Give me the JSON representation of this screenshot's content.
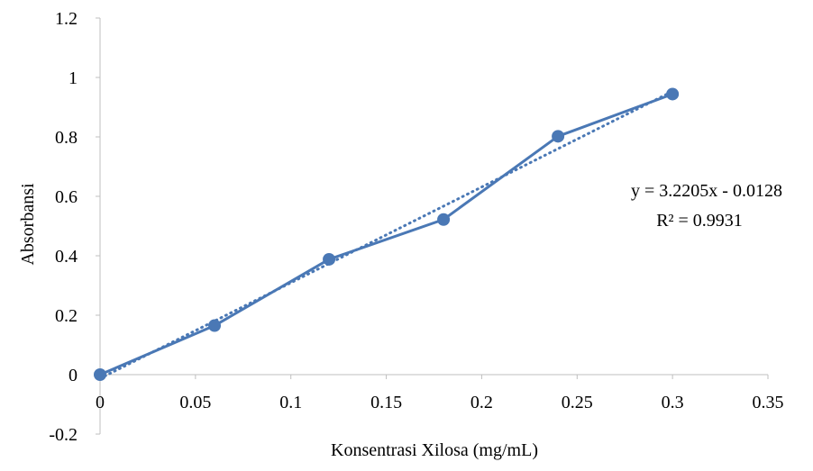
{
  "chart_data": {
    "type": "line",
    "xlabel": "Konsentrasi Xilosa (mg/mL)",
    "ylabel": "Absorbansi",
    "xlim": [
      0,
      0.35
    ],
    "ylim": [
      -0.2,
      1.2
    ],
    "x_ticks": [
      "0",
      "0.05",
      "0.1",
      "0.15",
      "0.2",
      "0.25",
      "0.3",
      "0.35"
    ],
    "y_ticks": [
      "-0.2",
      "0",
      "0.2",
      "0.4",
      "0.6",
      "0.8",
      "1",
      "1.2"
    ],
    "grid": false,
    "series": [
      {
        "x": [
          0,
          0.06,
          0.12,
          0.18,
          0.24,
          0.3
        ],
        "y": [
          0,
          0.165,
          0.388,
          0.522,
          0.802,
          0.944
        ],
        "color": "#4a78b5"
      }
    ],
    "trendline": {
      "style": "dotted",
      "slope": 3.2205,
      "intercept": -0.0128,
      "color": "#4a78b5"
    },
    "annotations": {
      "equation": "y = 3.2205x - 0.0128",
      "r_squared": "R² = 0.9931"
    }
  }
}
